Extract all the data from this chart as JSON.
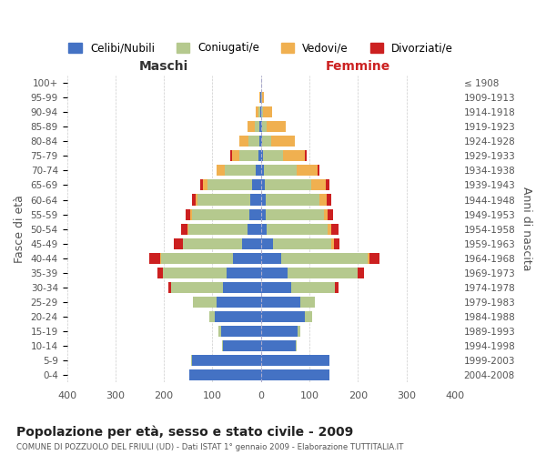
{
  "age_groups": [
    "100+",
    "95-99",
    "90-94",
    "85-89",
    "80-84",
    "75-79",
    "70-74",
    "65-69",
    "60-64",
    "55-59",
    "50-54",
    "45-49",
    "40-44",
    "35-39",
    "30-34",
    "25-29",
    "20-24",
    "15-19",
    "10-14",
    "5-9",
    "0-4"
  ],
  "birth_years": [
    "≤ 1908",
    "1909-1913",
    "1914-1918",
    "1919-1923",
    "1924-1928",
    "1929-1933",
    "1934-1938",
    "1939-1943",
    "1944-1948",
    "1949-1953",
    "1954-1958",
    "1959-1963",
    "1964-1968",
    "1969-1973",
    "1974-1978",
    "1979-1983",
    "1984-1988",
    "1989-1993",
    "1994-1998",
    "1999-2003",
    "2004-2008"
  ],
  "colors": {
    "celibi": "#4472c4",
    "coniugati": "#b5c98e",
    "vedovi": "#f0b050",
    "divorziati": "#cc2020"
  },
  "maschi": {
    "celibi": [
      0,
      1,
      1,
      3,
      4,
      6,
      10,
      18,
      22,
      24,
      28,
      38,
      58,
      70,
      78,
      92,
      95,
      82,
      78,
      142,
      148
    ],
    "coniugati": [
      0,
      1,
      4,
      10,
      22,
      38,
      65,
      92,
      108,
      118,
      122,
      122,
      148,
      132,
      108,
      48,
      12,
      5,
      3,
      2,
      0
    ],
    "vedovi": [
      0,
      2,
      6,
      15,
      18,
      15,
      16,
      10,
      5,
      3,
      2,
      1,
      2,
      0,
      0,
      0,
      0,
      0,
      0,
      0,
      0
    ],
    "divorziati": [
      0,
      0,
      0,
      0,
      0,
      4,
      0,
      6,
      8,
      10,
      12,
      18,
      22,
      12,
      5,
      0,
      0,
      0,
      0,
      0,
      0
    ]
  },
  "femmine": {
    "celibi": [
      0,
      0,
      0,
      2,
      2,
      4,
      6,
      8,
      10,
      10,
      12,
      25,
      42,
      55,
      62,
      82,
      90,
      76,
      72,
      142,
      142
    ],
    "coniugati": [
      0,
      2,
      5,
      10,
      20,
      42,
      68,
      95,
      110,
      120,
      125,
      120,
      178,
      145,
      90,
      30,
      15,
      5,
      2,
      0,
      0
    ],
    "vedovi": [
      1,
      5,
      18,
      40,
      48,
      45,
      42,
      30,
      15,
      8,
      8,
      5,
      3,
      0,
      0,
      0,
      0,
      0,
      0,
      0,
      0
    ],
    "divorziati": [
      0,
      0,
      0,
      0,
      0,
      4,
      5,
      8,
      10,
      10,
      15,
      12,
      22,
      12,
      8,
      0,
      0,
      0,
      0,
      0,
      0
    ]
  },
  "xlim": 400,
  "title": "Popolazione per età, sesso e stato civile - 2009",
  "subtitle": "COMUNE DI POZZUOLO DEL FRIULI (UD) - Dati ISTAT 1° gennaio 2009 - Elaborazione TUTTITALIA.IT",
  "xlabel_left": "Maschi",
  "xlabel_right": "Femmine",
  "ylabel_left": "Fasce di età",
  "ylabel_right": "Anni di nascita",
  "legend_labels": [
    "Celibi/Nubili",
    "Coniugati/e",
    "Vedovi/e",
    "Divorziati/e"
  ],
  "background_color": "#ffffff",
  "grid_color": "#cccccc"
}
